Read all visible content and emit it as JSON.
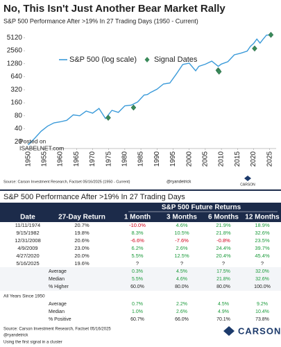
{
  "chart_data": {
    "type": "line",
    "title": "No, This Isn't Just Another Bear Market Rally",
    "subtitle": "S&P 500 Performance After >19% In 27 Trading Days (1950 - Current)",
    "log_scale": true,
    "legend": "top-left",
    "xlim": [
      1949,
      2027
    ],
    "xticks": [
      1950,
      1955,
      1960,
      1965,
      1970,
      1975,
      1980,
      1985,
      1990,
      1995,
      2000,
      2005,
      2010,
      2015,
      2020,
      2025
    ],
    "ylim": [
      14,
      7500
    ],
    "yticks": [
      20,
      40,
      80,
      160,
      320,
      640,
      1280,
      2560,
      5120
    ],
    "series": [
      {
        "name": "S&P 500 (log scale)",
        "color": "#3a9ad9",
        "x": [
          1950,
          1952,
          1954,
          1956,
          1958,
          1960,
          1962,
          1964,
          1966,
          1968,
          1970,
          1972,
          1974,
          1976,
          1978,
          1980,
          1982,
          1984,
          1986,
          1987,
          1988,
          1990,
          1992,
          1994,
          1996,
          1998,
          2000,
          2002,
          2003,
          2005,
          2007,
          2009,
          2010,
          2012,
          2014,
          2016,
          2018,
          2019,
          2020,
          2021,
          2022,
          2023,
          2024,
          2025
        ],
        "values": [
          17,
          24,
          35,
          46,
          55,
          58,
          63,
          84,
          80,
          103,
          92,
          118,
          69,
          107,
          96,
          136,
          141,
          167,
          242,
          247,
          277,
          330,
          435,
          459,
          740,
          1229,
          1320,
          880,
          1112,
          1248,
          1468,
          1115,
          1257,
          1426,
          2058,
          2238,
          2506,
          3230,
          3756,
          4766,
          3839,
          4769,
          5881,
          5900
        ]
      },
      {
        "name": "Signal Dates",
        "color": "#3a8a5a",
        "marker": "diamond",
        "x": [
          1974.86,
          1982.71,
          2008.99,
          2009.27,
          2020.32,
          2025.37
        ],
        "values": [
          72,
          124,
          903,
          840,
          2878,
          5958
        ]
      }
    ],
    "annotations": [
      "Posted on",
      "ISABELNET.com"
    ],
    "source": "Source: Carson Investment Research, Factset 05/16/2025 (1950 - Current)",
    "handle": "@ryandetrick",
    "logo": "CARSON"
  },
  "table": {
    "title": "S&P 500 Performance After >19% In 27 Trading Days",
    "group_header": "S&P 500 Future Returns",
    "columns": [
      "Date",
      "27-Day Return",
      "1 Month",
      "3 Months",
      "6 Months",
      "12 Months"
    ],
    "rows": [
      [
        "11/11/1974",
        "20.7%",
        "-10.0%",
        "4.6%",
        "21.9%",
        "18.9%"
      ],
      [
        "9/15/1982",
        "19.8%",
        "8.3%",
        "10.5%",
        "21.8%",
        "32.6%"
      ],
      [
        "12/31/2008",
        "20.6%",
        "-6.6%",
        "-7.6%",
        "-0.8%",
        "23.5%"
      ],
      [
        "4/9/2009",
        "23.0%",
        "6.2%",
        "2.6%",
        "24.4%",
        "39.7%"
      ],
      [
        "4/27/2020",
        "20.0%",
        "5.5%",
        "12.5%",
        "20.4%",
        "45.4%"
      ],
      [
        "5/16/2025",
        "19.6%",
        "?",
        "?",
        "?",
        "?"
      ]
    ],
    "summary": [
      [
        "Average",
        "0.3%",
        "4.5%",
        "17.5%",
        "32.0%"
      ],
      [
        "Median",
        "5.5%",
        "4.6%",
        "21.8%",
        "32.6%"
      ],
      [
        "% Higher",
        "60.0%",
        "80.0%",
        "80.0%",
        "100.0%"
      ]
    ],
    "all_years_title": "All Years Since 1950",
    "all_years": [
      [
        "Average",
        "0.7%",
        "2.2%",
        "4.5%",
        "9.2%"
      ],
      [
        "Median",
        "1.0%",
        "2.6%",
        "4.9%",
        "10.4%"
      ],
      [
        "% Positive",
        "60.7%",
        "66.0%",
        "70.1%",
        "73.8%"
      ]
    ],
    "source": "Source: Carson Investment Research, Factset 05/16/2025",
    "handle": "@ryandetrick",
    "note": "Using the first signal in a cluster",
    "logo": "CARSON"
  }
}
